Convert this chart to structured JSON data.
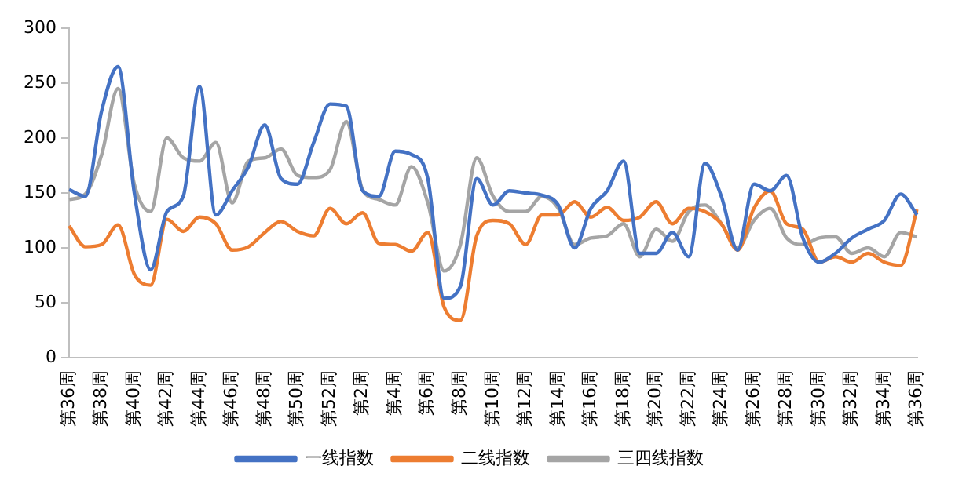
{
  "chart_data": {
    "type": "line",
    "categories": [
      "第36周",
      null,
      "第38周",
      null,
      "第40周",
      null,
      "第42周",
      null,
      "第44周",
      null,
      "第46周",
      null,
      "第48周",
      null,
      "第50周",
      null,
      "第52周",
      null,
      "第2周",
      null,
      "第4周",
      null,
      "第6周",
      null,
      "第8周",
      null,
      "第10周",
      null,
      "第12周",
      null,
      "第14周",
      null,
      "第16周",
      null,
      "第18周",
      null,
      "第20周",
      null,
      "第22周",
      null,
      "第24周",
      null,
      "第26周",
      null,
      "第28周",
      null,
      "第30周",
      null,
      "第32周",
      null,
      "第34周",
      null,
      "第36周"
    ],
    "series": [
      {
        "name": "一线指数",
        "color": "#4472c4",
        "values": [
          153,
          147,
          225,
          265,
          150,
          80,
          133,
          147,
          247,
          130,
          152,
          174,
          212,
          163,
          158,
          196,
          231,
          229,
          152,
          147,
          188,
          185,
          163,
          54,
          65,
          163,
          139,
          152,
          150,
          148,
          139,
          100,
          136,
          152,
          179,
          95,
          95,
          114,
          92,
          177,
          147,
          98,
          158,
          152,
          166,
          109,
          87,
          95,
          109,
          117,
          125,
          149,
          130
        ]
      },
      {
        "name": "二线指数",
        "color": "#ed7d31",
        "values": [
          120,
          101,
          103,
          121,
          76,
          66,
          126,
          115,
          128,
          122,
          98,
          101,
          114,
          124,
          115,
          111,
          136,
          122,
          132,
          104,
          103,
          97,
          114,
          46,
          34,
          111,
          125,
          122,
          103,
          130,
          130,
          142,
          128,
          137,
          125,
          128,
          142,
          122,
          136,
          133,
          122,
          98,
          136,
          152,
          122,
          117,
          87,
          92,
          87,
          95,
          87,
          84,
          135
        ]
      },
      {
        "name": "三四线指数",
        "color": "#a5a5a5",
        "values": [
          144,
          149,
          185,
          245,
          158,
          133,
          200,
          182,
          179,
          196,
          141,
          179,
          182,
          190,
          166,
          164,
          171,
          215,
          153,
          144,
          139,
          174,
          141,
          79,
          103,
          182,
          147,
          133,
          133,
          147,
          136,
          103,
          109,
          111,
          122,
          92,
          117,
          106,
          133,
          139,
          122,
          100,
          125,
          136,
          109,
          103,
          109,
          110,
          95,
          100,
          92,
          114,
          110
        ]
      }
    ],
    "ylim": [
      0,
      300
    ],
    "yticks": [
      0,
      50,
      100,
      150,
      200,
      250,
      300
    ],
    "grid": false,
    "legend": "bottom",
    "marker": "none",
    "line_style": "solid"
  }
}
